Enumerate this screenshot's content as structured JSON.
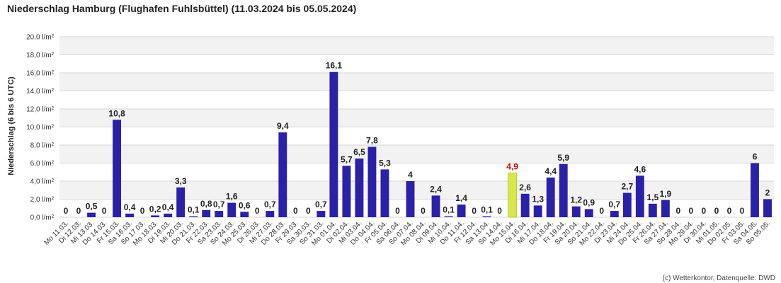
{
  "title": "Niederschlag Hamburg (Flughafen Fuhlsbüttel) (11.03.2024 bis 05.05.2024)",
  "copyright": "(c) Wetterkontor, Datenquelle: DWD",
  "colors": {
    "bar": "#2b21a8",
    "highlight_bar": "#d8e84a",
    "highlight_label": "#e00000",
    "band": "#f2f2f2",
    "grid": "#d6d6d6"
  },
  "chart_data": {
    "type": "bar",
    "title": "Niederschlag Hamburg (Flughafen Fuhlsbüttel) (11.03.2024 bis 05.05.2024)",
    "ylabel": "Niederschlag (6 bis 6 UTC)",
    "xlabel": "",
    "ylim": [
      0,
      20
    ],
    "grid": true,
    "y_ticks": [
      "0,0 l/m²",
      "2,0 l/m²",
      "4,0 l/m²",
      "6,0 l/m²",
      "8,0 l/m²",
      "10,0 l/m²",
      "12,0 l/m²",
      "14,0 l/m²",
      "16,0 l/m²",
      "18,0 l/m²",
      "20,0 l/m²"
    ],
    "highlight_category": "Mo 15.04.",
    "categories": [
      "Mo 11.03.",
      "Di 12.03.",
      "Mi 13.03.",
      "Do 14.03.",
      "Fr 15.03.",
      "Sa 16.03.",
      "So 17.03.",
      "Mo 18.03.",
      "Di 19.03.",
      "Mi 20.03.",
      "Do 21.03.",
      "Fr 22.03.",
      "Sa 23.03.",
      "So 24.03.",
      "Mo 25.03.",
      "Di 26.03.",
      "Mi 27.03.",
      "Do 28.03.",
      "Fr 29.03.",
      "Sa 30.03.",
      "So 31.03.",
      "Mo 01.04.",
      "Di 02.04.",
      "Mi 03.04.",
      "Do 04.04.",
      "Fr 05.04.",
      "Sa 06.04.",
      "So 07.04.",
      "Mo 08.04.",
      "Di 09.04.",
      "Mi 10.04.",
      "Do 11.04.",
      "Fr 12.04.",
      "Sa 13.04.",
      "So 14.04.",
      "Mo 15.04.",
      "Di 16.04.",
      "Mi 17.04.",
      "Do 18.04.",
      "Fr 19.04.",
      "Sa 20.04.",
      "So 21.04.",
      "Mo 22.04.",
      "Di 23.04.",
      "Mi 24.04.",
      "Do 25.04.",
      "Fr 26.04.",
      "Sa 27.04.",
      "So 28.04.",
      "Mo 29.04.",
      "Di 30.04.",
      "Mi 01.05.",
      "Do 02.05.",
      "Fr 03.05.",
      "Sa 04.05.",
      "So 05.05."
    ],
    "values": [
      0,
      0,
      0.5,
      0,
      10.8,
      0.4,
      0,
      0.2,
      0.4,
      3.3,
      0.1,
      0.8,
      0.7,
      1.6,
      0.6,
      0,
      0.7,
      9.4,
      0,
      0,
      0.7,
      16.1,
      5.7,
      6.5,
      7.8,
      5.3,
      0,
      4,
      0,
      2.4,
      0.1,
      1.4,
      0,
      0.1,
      0,
      4.9,
      2.6,
      1.3,
      4.4,
      5.9,
      1.2,
      0.9,
      0,
      0.7,
      2.7,
      4.6,
      1.5,
      1.9,
      0,
      0,
      0,
      0,
      0,
      0,
      6,
      2
    ],
    "value_labels": [
      "0",
      "0",
      "0,5",
      "0",
      "10,8",
      "0,4",
      "0",
      "0,2",
      "0,4",
      "3,3",
      "0,1",
      "0,8",
      "0,7",
      "1,6",
      "0,6",
      "0",
      "0,7",
      "9,4",
      "0",
      "0",
      "0,7",
      "16,1",
      "5,7",
      "6,5",
      "7,8",
      "5,3",
      "0",
      "4",
      "0",
      "2,4",
      "0,1",
      "1,4",
      "0",
      "0,1",
      "0",
      "4,9",
      "2,6",
      "1,3",
      "4,4",
      "5,9",
      "1,2",
      "0,9",
      "0",
      "0,7",
      "2,7",
      "4,6",
      "1,5",
      "1,9",
      "0",
      "0",
      "0",
      "0",
      "0",
      "0",
      "6",
      "2"
    ]
  }
}
